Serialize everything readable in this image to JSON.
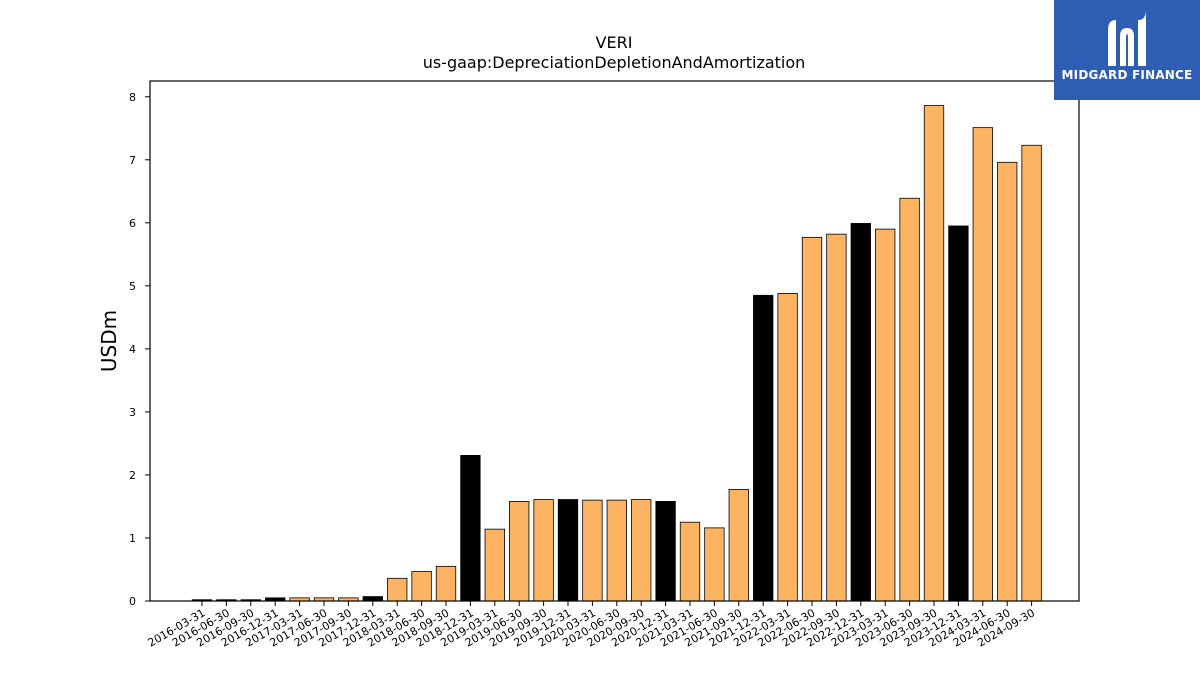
{
  "chart_data": {
    "type": "bar",
    "title": "VERI",
    "subtitle": "us-gaap:DepreciationDepletionAndAmortization",
    "xlabel": "",
    "ylabel": "USDm",
    "ylim": [
      0,
      8.25
    ],
    "yticks": [
      0,
      1,
      2,
      3,
      4,
      5,
      6,
      7,
      8
    ],
    "grid": false,
    "categories": [
      "2016-03-31",
      "2016-06-30",
      "2016-09-30",
      "2016-12-31",
      "2017-03-31",
      "2017-06-30",
      "2017-09-30",
      "2017-12-31",
      "2018-03-31",
      "2018-06-30",
      "2018-09-30",
      "2018-12-31",
      "2019-03-31",
      "2019-06-30",
      "2019-09-30",
      "2019-12-31",
      "2020-03-31",
      "2020-06-30",
      "2020-09-30",
      "2020-12-31",
      "2021-03-31",
      "2021-06-30",
      "2021-09-30",
      "2021-12-31",
      "2022-03-31",
      "2022-06-30",
      "2022-09-30",
      "2022-12-31",
      "2023-03-31",
      "2023-06-30",
      "2023-09-30",
      "2023-12-31",
      "2024-03-31",
      "2024-06-30",
      "2024-09-30"
    ],
    "values": [
      0.02,
      0.02,
      0.02,
      0.05,
      0.05,
      0.05,
      0.05,
      0.07,
      0.36,
      0.47,
      0.55,
      2.31,
      1.14,
      1.58,
      1.61,
      1.61,
      1.6,
      1.6,
      1.61,
      1.58,
      1.25,
      1.16,
      1.77,
      4.85,
      4.88,
      5.77,
      5.82,
      5.99,
      5.9,
      6.39,
      7.86,
      5.95,
      7.51,
      6.96,
      7.23
    ],
    "bar_colors": [
      "#000000",
      "#000000",
      "#000000",
      "#000000",
      "#fdb462",
      "#fdb462",
      "#fdb462",
      "#000000",
      "#fdb462",
      "#fdb462",
      "#fdb462",
      "#000000",
      "#fdb462",
      "#fdb462",
      "#fdb462",
      "#000000",
      "#fdb462",
      "#fdb462",
      "#fdb462",
      "#000000",
      "#fdb462",
      "#fdb462",
      "#fdb462",
      "#000000",
      "#fdb462",
      "#fdb462",
      "#fdb462",
      "#000000",
      "#fdb462",
      "#fdb462",
      "#fdb462",
      "#000000",
      "#fdb462",
      "#fdb462",
      "#fdb462"
    ],
    "colors": {
      "quarter": "#fdb462",
      "year_end": "#000000",
      "edge": "#000000"
    }
  },
  "logo": {
    "text": "MIDGARD FINANCE",
    "background": "#2d5eb3",
    "icon": "midgard-logo-icon"
  }
}
